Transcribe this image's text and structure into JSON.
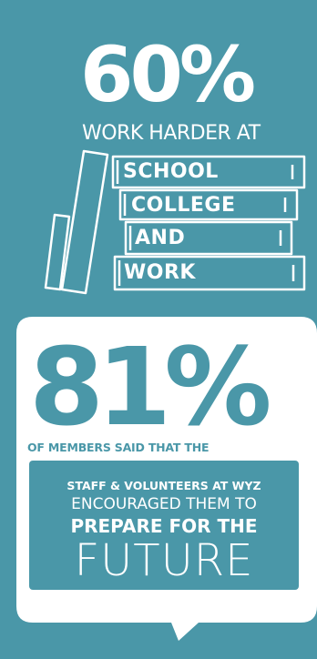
{
  "top_stat": {
    "percent": "60%",
    "caption": "WORK HARDER AT"
  },
  "books": {
    "items": [
      {
        "label": "SCHOOL"
      },
      {
        "label": "COLLEGE"
      },
      {
        "label": "AND"
      },
      {
        "label": "WORK"
      }
    ]
  },
  "bottom_stat": {
    "percent": "81%",
    "caption": "OF MEMBERS SAID THAT THE",
    "staff_line": "STAFF & VOLUNTEERS AT WYZ",
    "encouraged_line": "ENCOURAGED THEM TO",
    "prepare_line": "PREPARE FOR THE",
    "future_line": "FUTURE"
  },
  "colors": {
    "background": "#4a97a8",
    "bubble": "#ffffff",
    "text_light": "#ffffff"
  }
}
